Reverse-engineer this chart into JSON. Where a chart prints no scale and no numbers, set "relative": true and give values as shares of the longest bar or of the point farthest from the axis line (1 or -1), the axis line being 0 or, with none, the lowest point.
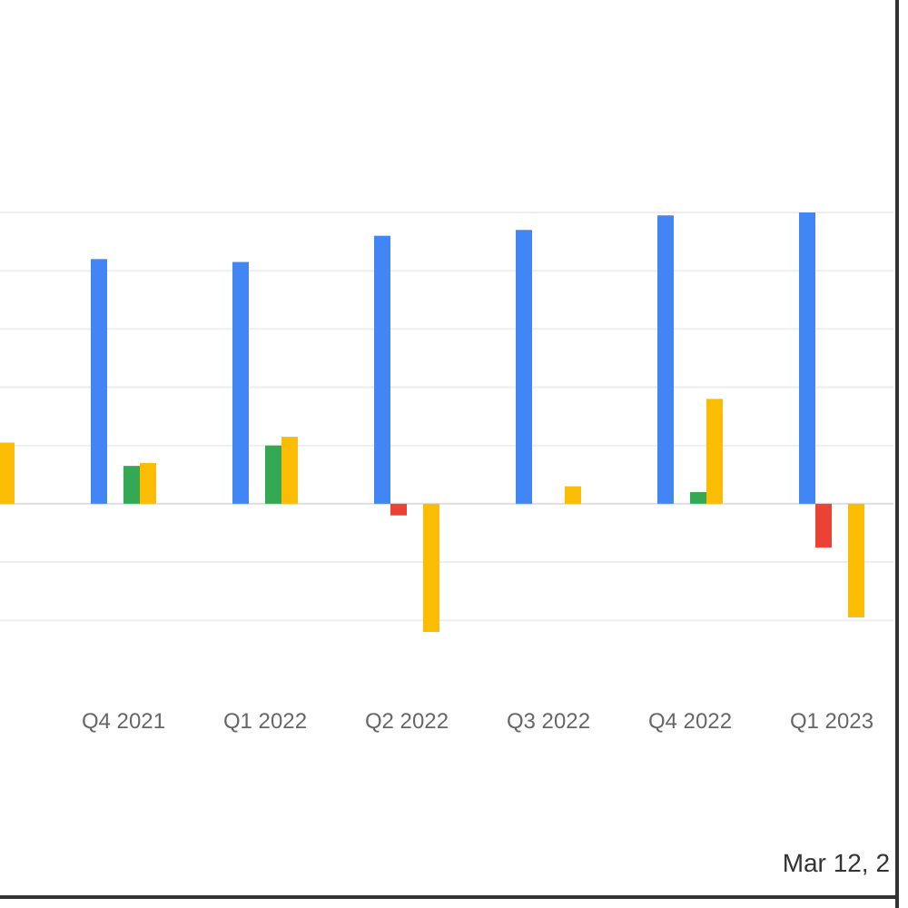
{
  "chart_data": {
    "type": "bar",
    "relative": true,
    "grid": "y",
    "categories": [
      null,
      "Q4 2021",
      "Q1 2022",
      "Q2 2022",
      "Q3 2022",
      "Q4 2022",
      "Q1 2023"
    ],
    "series": [
      {
        "color": "#4285f4",
        "values": [
          null,
          0.84,
          0.83,
          0.92,
          0.94,
          0.99,
          1
        ]
      },
      {
        "color": "#ea4335",
        "values": [
          null,
          null,
          null,
          -0.04,
          null,
          null,
          -0.15
        ]
      },
      {
        "color": "#34a853",
        "values": [
          null,
          0.13,
          0.2,
          null,
          null,
          0.04,
          null
        ]
      },
      {
        "color": "#fbbc04",
        "values": [
          0.21,
          0.14,
          0.23,
          -0.44,
          0.06,
          0.36,
          -0.39
        ]
      }
    ],
    "annotations": [
      "Mar 12, 2"
    ]
  }
}
